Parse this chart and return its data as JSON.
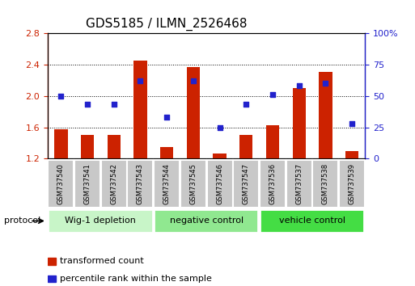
{
  "title": "GDS5185 / ILMN_2526468",
  "samples": [
    "GSM737540",
    "GSM737541",
    "GSM737542",
    "GSM737543",
    "GSM737544",
    "GSM737545",
    "GSM737546",
    "GSM737547",
    "GSM737536",
    "GSM737537",
    "GSM737538",
    "GSM737539"
  ],
  "bar_values": [
    1.57,
    1.5,
    1.5,
    2.45,
    1.35,
    2.37,
    1.27,
    1.5,
    1.63,
    2.1,
    2.3,
    1.3
  ],
  "scatter_percentile": [
    50,
    43,
    43,
    62,
    33,
    62,
    25,
    43,
    51,
    58,
    60,
    28
  ],
  "bar_color": "#cc2200",
  "scatter_color": "#2222cc",
  "ylim": [
    1.2,
    2.8
  ],
  "y2lim": [
    0,
    100
  ],
  "yticks": [
    1.2,
    1.6,
    2.0,
    2.4,
    2.8
  ],
  "y2ticks": [
    0,
    25,
    50,
    75,
    100
  ],
  "groups": [
    {
      "label": "Wig-1 depletion",
      "start": 0,
      "end": 4,
      "color": "#c8f5c8"
    },
    {
      "label": "negative control",
      "start": 4,
      "end": 8,
      "color": "#90e890"
    },
    {
      "label": "vehicle control",
      "start": 8,
      "end": 12,
      "color": "#44dd44"
    }
  ],
  "protocol_label": "protocol",
  "bar_width": 0.5,
  "legend_bar_label": "transformed count",
  "legend_scatter_label": "percentile rank within the sample",
  "bar_bottom": 1.2,
  "title_fontsize": 11,
  "tick_fontsize": 8,
  "sample_box_color": "#c8c8c8",
  "gridline_ticks": [
    1.6,
    2.0,
    2.4
  ]
}
